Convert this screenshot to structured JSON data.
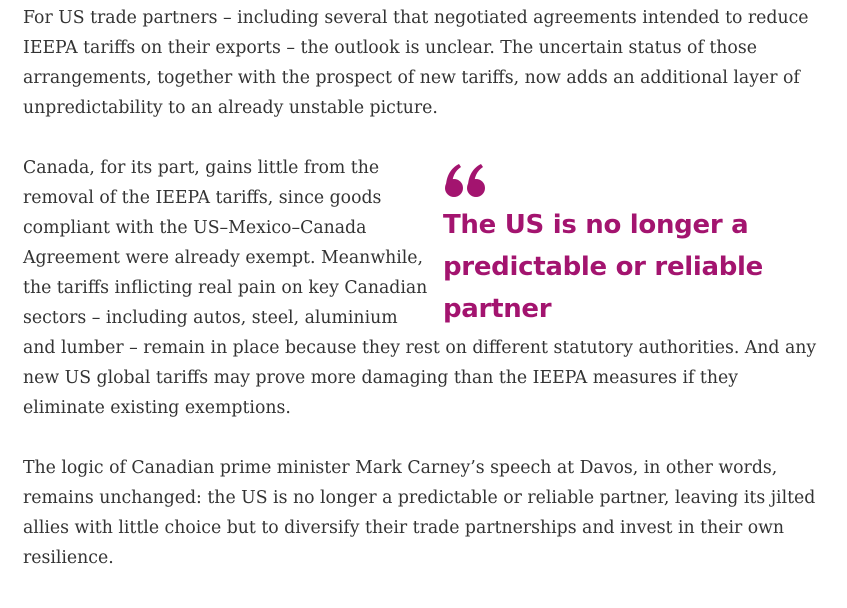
{
  "article": {
    "paragraph_1": "For US trade partners – including several that negotiated agreements intended to reduce IEEPA tariffs on their exports – the outlook is unclear. The uncertain status of those arrangements, together with the prospect of new tariffs, now adds an additional layer of unpredictability to an already unstable picture.",
    "paragraph_2": "Canada, for its part, gains little from the removal of the IEEPA tariffs, since goods compliant with the US–Mexico–Canada Agreement were already exempt. Meanwhile, the tariffs inflicting real pain on key Canadian sectors – including autos, steel, aluminium and lumber – remain in place because they rest on different statutory authorities. And any new US global tariffs may prove more damaging than the IEEPA measures if they eliminate existing exemptions.",
    "paragraph_3": "The logic of Canadian prime minister Mark Carney’s speech at Davos, in other words, remains unchanged: the US is no longer a predictable or reliable partner, leaving its jilted allies with little choice but to diversify their trade partnerships and invest in their own resilience."
  },
  "pullquote": {
    "text": "The US is no longer a predictable or reliable partner",
    "icon": "quote-mark-icon",
    "color": "#a3146f"
  }
}
